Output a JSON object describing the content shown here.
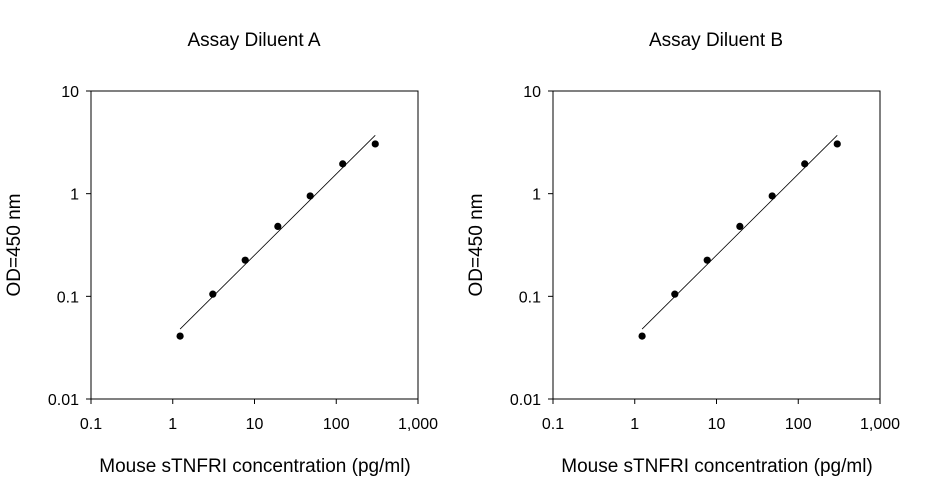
{
  "chart_data": [
    {
      "type": "scatter",
      "title": "Assay Diluent A",
      "xlabel": "Mouse sTNFRI concentration (pg/ml)",
      "ylabel": "OD=450 nm",
      "xscale": "log",
      "yscale": "log",
      "xlim": [
        0.1,
        1000
      ],
      "ylim": [
        0.01,
        10
      ],
      "xticks": [
        "0.1",
        "1",
        "10",
        "100",
        "1,000"
      ],
      "yticks": [
        "0.01",
        "0.1",
        "1",
        "10"
      ],
      "grid": false,
      "legend": "none",
      "series": [
        {
          "x": [
            1.23,
            3.09,
            7.7,
            19.3,
            48,
            120,
            300
          ],
          "y": [
            0.041,
            0.105,
            0.225,
            0.48,
            0.95,
            1.95,
            3.05
          ]
        }
      ],
      "fit_line": {
        "x": [
          1.23,
          300
        ],
        "y": [
          0.048,
          3.7
        ]
      }
    },
    {
      "type": "scatter",
      "title": "Assay Diluent B",
      "xlabel": "Mouse sTNFRI concentration (pg/ml)",
      "ylabel": "OD=450 nm",
      "xscale": "log",
      "yscale": "log",
      "xlim": [
        0.1,
        1000
      ],
      "ylim": [
        0.01,
        10
      ],
      "xticks": [
        "0.1",
        "1",
        "10",
        "100",
        "1,000"
      ],
      "yticks": [
        "0.01",
        "0.1",
        "1",
        "10"
      ],
      "grid": false,
      "legend": "none",
      "series": [
        {
          "x": [
            1.23,
            3.09,
            7.7,
            19.3,
            48,
            120,
            300
          ],
          "y": [
            0.041,
            0.105,
            0.225,
            0.48,
            0.95,
            1.95,
            3.05
          ]
        }
      ],
      "fit_line": {
        "x": [
          1.23,
          300
        ],
        "y": [
          0.048,
          3.7
        ]
      }
    }
  ]
}
